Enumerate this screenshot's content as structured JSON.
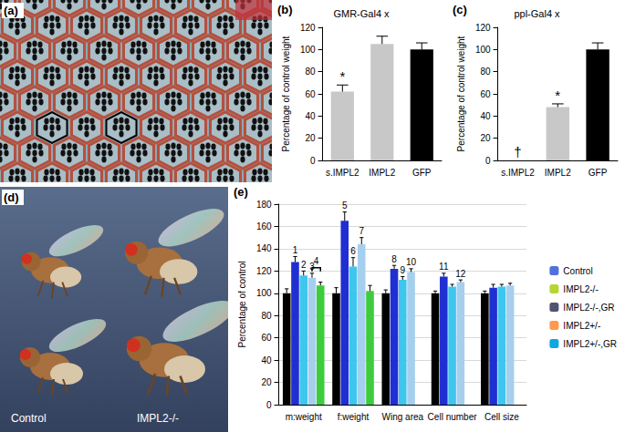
{
  "chart_data": [
    {
      "type": "bar",
      "panel_label": "(b)",
      "title": "GMR-Gal4 x",
      "y_label": "Percentage of control weight",
      "categories": [
        "s.IMPL2",
        "IMPL2",
        "GFP"
      ],
      "values": [
        62,
        105,
        100
      ],
      "errors": [
        6,
        7,
        6
      ],
      "colors": [
        "#c8c8c8",
        "#c8c8c8",
        "#000000"
      ],
      "ylim": [
        0,
        120
      ],
      "yticks": [
        0,
        20,
        40,
        60,
        80,
        100,
        120
      ],
      "grid": false,
      "annotations": [
        {
          "text": "*",
          "category": "s.IMPL2"
        }
      ]
    },
    {
      "type": "bar",
      "panel_label": "(c)",
      "title": "ppl-Gal4 x",
      "y_label": "Percentage of control weight",
      "categories": [
        "s.IMPL2",
        "IMPL2",
        "GFP"
      ],
      "values": [
        0,
        48,
        100
      ],
      "errors": [
        null,
        3,
        6
      ],
      "colors": [
        "#c8c8c8",
        "#c8c8c8",
        "#000000"
      ],
      "ylim": [
        0,
        120
      ],
      "yticks": [
        0,
        20,
        40,
        60,
        80,
        100,
        120
      ],
      "grid": false,
      "annotations": [
        {
          "text": "†",
          "category": "s.IMPL2"
        },
        {
          "text": "*",
          "category": "IMPL2"
        }
      ]
    },
    {
      "type": "bar",
      "panel_label": "(e)",
      "y_label": "Percentage of control",
      "categories": [
        "m:weight",
        "f:weight",
        "Wing area",
        "Cell number",
        "Cell size"
      ],
      "series": [
        {
          "name": "Control",
          "color": "#000000",
          "values": [
            100,
            100,
            100,
            100,
            100
          ],
          "errors": [
            4,
            5,
            3,
            2,
            2
          ]
        },
        {
          "name": "IMPL2-/-",
          "color": "#1f2fd1",
          "values": [
            128,
            165,
            122,
            115,
            105
          ],
          "errors": [
            5,
            8,
            3,
            3,
            3
          ]
        },
        {
          "name": "IMPL2-/-,GR",
          "color": "#3ec6ee",
          "values": [
            116,
            124,
            112,
            106,
            106
          ],
          "errors": [
            4,
            8,
            3,
            2,
            2
          ]
        },
        {
          "name": "IMPL2+/-",
          "color": "#a6cfee",
          "values": [
            114,
            144,
            119,
            110,
            107
          ],
          "errors": [
            4,
            6,
            3,
            2,
            2
          ]
        },
        {
          "name": "IMPL2+/-,GR",
          "color": "#3dcc3d",
          "values": [
            107,
            102,
            null,
            null,
            null
          ],
          "errors": [
            3,
            5,
            null,
            null,
            null
          ]
        }
      ],
      "ylim": [
        0,
        180
      ],
      "yticks": [
        0,
        20,
        40,
        60,
        80,
        100,
        120,
        140,
        160,
        180
      ],
      "grid": true,
      "legend": "right",
      "annotations": [
        {
          "text": "1",
          "category": "m:weight",
          "series": "IMPL2-/-"
        },
        {
          "text": "2",
          "category": "m:weight",
          "series": "IMPL2-/-,GR"
        },
        {
          "text": "3",
          "category": "m:weight",
          "series": "IMPL2+/-"
        },
        {
          "text": "4",
          "category": "m:weight",
          "series": [
            "IMPL2+/-",
            "IMPL2+/-,GR"
          ]
        },
        {
          "text": "5",
          "category": "f:weight",
          "series": "IMPL2-/-"
        },
        {
          "text": "6",
          "category": "f:weight",
          "series": "IMPL2-/-,GR"
        },
        {
          "text": "7",
          "category": "f:weight",
          "series": "IMPL2+/-"
        },
        {
          "text": "8",
          "category": "Wing area",
          "series": "IMPL2-/-"
        },
        {
          "text": "9",
          "category": "Wing area",
          "series": "IMPL2-/-,GR"
        },
        {
          "text": "10",
          "category": "Wing area",
          "series": "IMPL2+/-"
        },
        {
          "text": "11",
          "category": "Cell number",
          "series": "IMPL2-/-"
        },
        {
          "text": "12",
          "category": "Cell number",
          "series": "IMPL2+/-"
        }
      ]
    }
  ],
  "images": [
    {
      "panel_label": "(a)"
    },
    {
      "panel_label": "(d)",
      "labels": [
        "Control",
        "IMPL2-/-"
      ]
    }
  ]
}
